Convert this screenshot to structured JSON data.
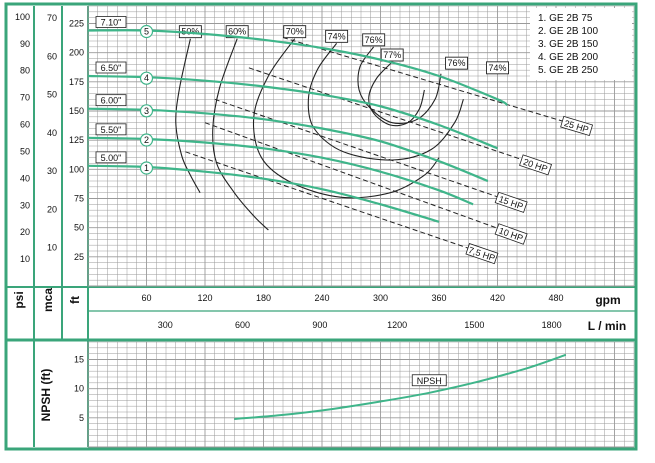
{
  "chart_data": {
    "type": "line",
    "title": "",
    "colors": {
      "frame": "#3aa57a",
      "curve": "#3fb58a",
      "grid": "#9a9a9a",
      "iso": "#222222",
      "text": "#111111"
    },
    "axes": {
      "gpm": {
        "label": "gpm",
        "ticks": [
          "60",
          "120",
          "180",
          "240",
          "300",
          "360",
          "420",
          "480"
        ],
        "range": [
          0,
          560
        ]
      },
      "lmin": {
        "label": "L / min",
        "ticks": [
          "300",
          "600",
          "900",
          "1200",
          "1500",
          "1800"
        ]
      },
      "ft": {
        "label": "ft",
        "ticks": [
          "25",
          "50",
          "75",
          "100",
          "125",
          "150",
          "175",
          "200",
          "225"
        ],
        "range": [
          0,
          240
        ]
      },
      "mca": {
        "label": "mca",
        "ticks": [
          "10",
          "20",
          "30",
          "40",
          "50",
          "60",
          "70"
        ]
      },
      "psi": {
        "label": "psi",
        "ticks": [
          "10",
          "20",
          "30",
          "40",
          "50",
          "60",
          "70",
          "80",
          "90",
          "100"
        ]
      },
      "npsh": {
        "label": "NPSH (ft)",
        "ticks": [
          "5",
          "10",
          "15"
        ],
        "range": [
          0,
          18
        ]
      }
    },
    "legend": {
      "placement": "top-right",
      "entries": [
        "1. GE 2B 75",
        "2. GE 2B 100",
        "3. GE 2B 150",
        "4. GE 2B 200",
        "5. GE 2B 250"
      ]
    },
    "impellers": [
      {
        "id": "1",
        "diameter": "5.00\"",
        "x": [
          0,
          60,
          120,
          180,
          240,
          300,
          360
        ],
        "y": [
          103,
          102,
          98,
          92,
          83,
          70,
          55
        ]
      },
      {
        "id": "2",
        "diameter": "5.50\"",
        "x": [
          0,
          60,
          120,
          180,
          240,
          300,
          360,
          395
        ],
        "y": [
          127,
          126,
          123,
          118,
          110,
          98,
          82,
          70
        ]
      },
      {
        "id": "3",
        "diameter": "6.00\"",
        "x": [
          0,
          60,
          120,
          180,
          240,
          300,
          360,
          410
        ],
        "y": [
          152,
          151,
          148,
          143,
          135,
          124,
          107,
          90
        ]
      },
      {
        "id": "4",
        "diameter": "6.50\"",
        "x": [
          0,
          60,
          120,
          180,
          240,
          300,
          360,
          420
        ],
        "y": [
          180,
          179,
          176,
          171,
          164,
          154,
          138,
          118
        ]
      },
      {
        "id": "5",
        "diameter": "7.10\"",
        "x": [
          0,
          60,
          120,
          180,
          240,
          300,
          360,
          420,
          430
        ],
        "y": [
          219,
          219,
          216,
          211,
          204,
          194,
          180,
          160,
          155
        ]
      }
    ],
    "efficiency": [
      {
        "label": "50%",
        "x": [
          105,
          94,
          90,
          96,
          105,
          115
        ],
        "y": [
          212,
          170,
          140,
          112,
          95,
          80
        ]
      },
      {
        "label": "60%",
        "x": [
          153,
          135,
          128,
          132,
          150,
          170,
          185
        ],
        "y": [
          212,
          170,
          135,
          105,
          80,
          60,
          48
        ]
      },
      {
        "label": "70%",
        "x": [
          212,
          185,
          170,
          178,
          210,
          260,
          310,
          345,
          360
        ],
        "y": [
          212,
          180,
          145,
          110,
          88,
          76,
          80,
          95,
          110
        ]
      },
      {
        "label": "74%",
        "x": [
          255,
          235,
          226,
          232,
          262,
          312,
          352,
          376,
          385
        ],
        "y": [
          208,
          185,
          160,
          135,
          115,
          108,
          117,
          140,
          160
        ]
      },
      {
        "label": "76%",
        "x": [
          293,
          279,
          278,
          290,
          312,
          338,
          356,
          362
        ],
        "y": [
          205,
          188,
          168,
          152,
          140,
          143,
          160,
          182
        ]
      },
      {
        "label": "77%",
        "x": [
          312,
          296,
          288,
          293,
          310,
          328,
          340,
          345
        ],
        "y": [
          192,
          178,
          162,
          148,
          138,
          140,
          152,
          168
        ]
      },
      {
        "label": "76%",
        "x": [
          378
        ],
        "y": [
          185
        ]
      },
      {
        "label": "74%",
        "x": [
          420
        ],
        "y": [
          181
        ]
      }
    ],
    "power": [
      {
        "label": "7,5 HP",
        "x": [
          100,
          395
        ],
        "y": [
          115,
          31
        ]
      },
      {
        "label": "10 HP",
        "x": [
          120,
          425
        ],
        "y": [
          140,
          48
        ]
      },
      {
        "label": "15 HP",
        "x": [
          130,
          425
        ],
        "y": [
          160,
          75
        ]
      },
      {
        "label": "20 HP",
        "x": [
          165,
          450
        ],
        "y": [
          187,
          107
        ]
      },
      {
        "label": "25 HP",
        "x": [
          200,
          492
        ],
        "y": [
          213,
          140
        ]
      }
    ],
    "npsh_curve": {
      "label": "NPSH",
      "x": [
        150,
        200,
        250,
        300,
        350,
        400,
        450,
        490
      ],
      "y": [
        4.8,
        5.5,
        6.5,
        7.8,
        9.3,
        11.2,
        13.5,
        15.8
      ]
    }
  }
}
